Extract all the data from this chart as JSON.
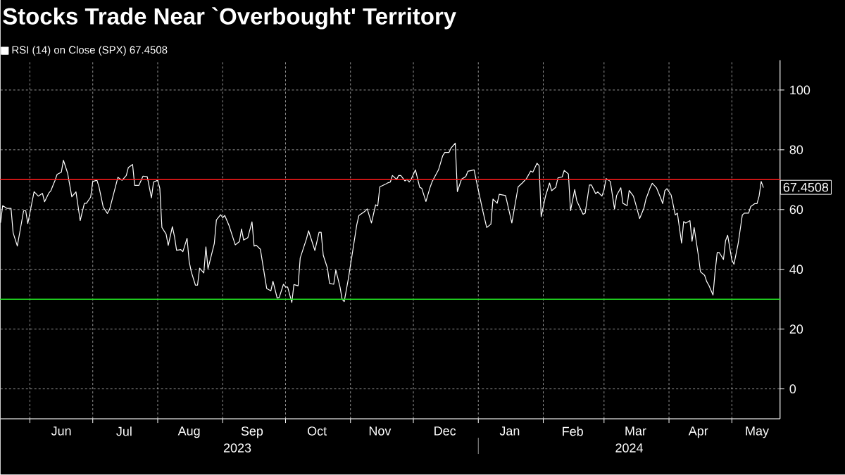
{
  "chart_data": {
    "type": "line",
    "title": "Stocks Trade Near `Overbought' Territory",
    "x": [
      "2023-05-18",
      "2023-05-19",
      "2023-05-21",
      "2023-05-23",
      "2023-05-24",
      "2023-05-26",
      "2023-05-29",
      "2023-05-30",
      "2023-05-31",
      "2023-06-03",
      "2023-06-05",
      "2023-06-07",
      "2023-06-08",
      "2023-06-10",
      "2023-06-11",
      "2023-06-13",
      "2023-06-14",
      "2023-06-16",
      "2023-06-17",
      "2023-06-19",
      "2023-06-21",
      "2023-06-23",
      "2023-06-25",
      "2023-06-27",
      "2023-06-28",
      "2023-06-30",
      "2023-07-01",
      "2023-07-03",
      "2023-07-04",
      "2023-07-06",
      "2023-07-08",
      "2023-07-09",
      "2023-07-13",
      "2023-07-15",
      "2023-07-17",
      "2023-07-18",
      "2023-07-20",
      "2023-07-21",
      "2023-07-23",
      "2023-07-25",
      "2023-07-27",
      "2023-07-29",
      "2023-07-30",
      "2023-08-01",
      "2023-08-02",
      "2023-08-03",
      "2023-08-05",
      "2023-08-06",
      "2023-08-08",
      "2023-08-09",
      "2023-08-10",
      "2023-08-12",
      "2023-08-13",
      "2023-08-15",
      "2023-08-16",
      "2023-08-17",
      "2023-08-19",
      "2023-08-20",
      "2023-08-21",
      "2023-08-23",
      "2023-08-24",
      "2023-08-25",
      "2023-08-28",
      "2023-08-29",
      "2023-08-31",
      "2023-09-01",
      "2023-09-02",
      "2023-09-04",
      "2023-09-06",
      "2023-09-07",
      "2023-09-09",
      "2023-09-10",
      "2023-09-11",
      "2023-09-13",
      "2023-09-15",
      "2023-09-16",
      "2023-09-17",
      "2023-09-19",
      "2023-09-22",
      "2023-09-24",
      "2023-09-25",
      "2023-09-27",
      "2023-09-28",
      "2023-09-30",
      "2023-10-01",
      "2023-10-02",
      "2023-10-04",
      "2023-10-05",
      "2023-10-07",
      "2023-10-08",
      "2023-10-11",
      "2023-10-12",
      "2023-10-15",
      "2023-10-17",
      "2023-10-18",
      "2023-10-19",
      "2023-10-21",
      "2023-10-22",
      "2023-10-24",
      "2023-10-25",
      "2023-10-27",
      "2023-10-28",
      "2023-10-29",
      "2023-10-31",
      "2023-11-02",
      "2023-11-04",
      "2023-11-05",
      "2023-11-08",
      "2023-11-09",
      "2023-11-11",
      "2023-11-13",
      "2023-11-14",
      "2023-11-15",
      "2023-11-18",
      "2023-11-19",
      "2023-11-20",
      "2023-11-21",
      "2023-11-23",
      "2023-11-24",
      "2023-11-25",
      "2023-11-27",
      "2023-11-28",
      "2023-11-29",
      "2023-11-30",
      "2023-12-02",
      "2023-12-04",
      "2023-12-05",
      "2023-12-07",
      "2023-12-09",
      "2023-12-10",
      "2023-12-13",
      "2023-12-15",
      "2023-12-16",
      "2023-12-18",
      "2023-12-19",
      "2023-12-21",
      "2023-12-22",
      "2023-12-24",
      "2023-12-26",
      "2023-12-27",
      "2023-12-30",
      "2023-12-31",
      "2024-01-03",
      "2024-01-05",
      "2024-01-07",
      "2024-01-08",
      "2024-01-10",
      "2024-01-11",
      "2024-01-14",
      "2024-01-17",
      "2024-01-20",
      "2024-01-22",
      "2024-01-24",
      "2024-01-26",
      "2024-01-27",
      "2024-01-29",
      "2024-01-30",
      "2024-01-31",
      "2024-02-02",
      "2024-02-04",
      "2024-02-05",
      "2024-02-07",
      "2024-02-08",
      "2024-02-10",
      "2024-02-11",
      "2024-02-13",
      "2024-02-14",
      "2024-02-16",
      "2024-02-17",
      "2024-02-20",
      "2024-02-21",
      "2024-02-23",
      "2024-02-24",
      "2024-02-26",
      "2024-02-27",
      "2024-02-29",
      "2024-03-01",
      "2024-03-02",
      "2024-03-04",
      "2024-03-06",
      "2024-03-07",
      "2024-03-09",
      "2024-03-10",
      "2024-03-12",
      "2024-03-13",
      "2024-03-15",
      "2024-03-16",
      "2024-03-18",
      "2024-03-20",
      "2024-03-21",
      "2024-03-23",
      "2024-03-24",
      "2024-03-26",
      "2024-03-28",
      "2024-03-29",
      "2024-03-30",
      "2024-03-31",
      "2024-04-02",
      "2024-04-04",
      "2024-04-05",
      "2024-04-07",
      "2024-04-08",
      "2024-04-09",
      "2024-04-11",
      "2024-04-12",
      "2024-04-13",
      "2024-04-15",
      "2024-04-16",
      "2024-04-18",
      "2024-04-19",
      "2024-04-20",
      "2024-04-22",
      "2024-04-23",
      "2024-04-24",
      "2024-04-25",
      "2024-04-27",
      "2024-04-28",
      "2024-04-29",
      "2024-05-01",
      "2024-05-02",
      "2024-05-04",
      "2024-05-06",
      "2024-05-07",
      "2024-05-09",
      "2024-05-10",
      "2024-05-12",
      "2024-05-13",
      "2024-05-14",
      "2024-05-15",
      "2024-05-16"
    ],
    "series": [
      {
        "name": "RSI (14)  on Close (SPX) 67.4508",
        "color": "#ffffff",
        "values": [
          55.7,
          61.3,
          60.4,
          60.4,
          52.2,
          47.8,
          59.6,
          59.6,
          55.3,
          66.0,
          64.5,
          65.4,
          62.6,
          65.5,
          66.3,
          69.8,
          71.8,
          72.5,
          76.5,
          72.2,
          64.3,
          65.9,
          56.3,
          62.1,
          62.1,
          64.2,
          69.4,
          69.8,
          67.5,
          60.8,
          58.7,
          60.0,
          70.8,
          69.8,
          71.4,
          74.1,
          75.1,
          68.1,
          68.1,
          71.2,
          71.0,
          63.9,
          69.2,
          69.8,
          67.1,
          54.0,
          51.8,
          48.0,
          54.3,
          51.0,
          46.4,
          46.6,
          45.9,
          50.4,
          42.7,
          39.2,
          34.7,
          34.7,
          40.4,
          38.8,
          47.5,
          40.2,
          48.6,
          56.5,
          58.3,
          57.3,
          58.0,
          54.7,
          50.4,
          48.2,
          49.3,
          53.5,
          49.8,
          50.6,
          55.9,
          47.8,
          48.1,
          46.7,
          33.6,
          32.8,
          36.0,
          30.4,
          30.6,
          35.0,
          34.1,
          34.1,
          28.9,
          34.9,
          34.5,
          43.8,
          50.2,
          52.9,
          46.3,
          52.4,
          52.4,
          44.7,
          40.4,
          35.3,
          35.0,
          39.8,
          34.1,
          30.0,
          29.2,
          36.9,
          45.9,
          54.9,
          58.0,
          59.5,
          60.2,
          55.5,
          61.6,
          61.2,
          67.6,
          68.6,
          69.0,
          69.2,
          71.4,
          70.1,
          71.4,
          71.4,
          69.6,
          70.1,
          69.2,
          70.2,
          73.3,
          67.5,
          67.1,
          62.7,
          67.5,
          69.4,
          73.3,
          78.0,
          79.1,
          79.1,
          80.6,
          82.2,
          66.0,
          70.2,
          71.0,
          72.8,
          73.3,
          69.8,
          60.0,
          54.0,
          55.1,
          63.5,
          62.1,
          65.1,
          64.7,
          55.5,
          67.6,
          68.9,
          70.4,
          72.9,
          72.5,
          75.5,
          74.7,
          57.6,
          64.3,
          68.9,
          66.3,
          67.5,
          70.6,
          70.9,
          73.1,
          71.9,
          59.6,
          66.7,
          62.9,
          58.4,
          58.8,
          68.2,
          68.2,
          65.3,
          65.9,
          64.5,
          66.7,
          70.4,
          69.4,
          60.2,
          64.7,
          67.3,
          62.1,
          61.3,
          66.4,
          64.5,
          62.1,
          57.0,
          60.4,
          63.5,
          67.3,
          68.8,
          67.3,
          63.9,
          62.0,
          66.3,
          67.0,
          64.9,
          58.2,
          58.8,
          48.8,
          56.0,
          55.5,
          56.3,
          49.4,
          54.0,
          44.7,
          39.2,
          38.0,
          35.9,
          34.7,
          31.4,
          39.2,
          45.6,
          45.6,
          43.3,
          49.6,
          51.4,
          43.1,
          41.7,
          48.6,
          58.2,
          58.8,
          58.8,
          61.0,
          62.0,
          62.0,
          64.5,
          69.4,
          67.4508
        ]
      }
    ],
    "xlim": [
      "2023-05-18",
      "2024-05-24"
    ],
    "xticks": [
      {
        "value": "2023-06-01",
        "label": null
      },
      {
        "value": "2023-07-01",
        "label": null
      },
      {
        "value": "2023-08-01",
        "label": null
      },
      {
        "value": "2023-09-01",
        "label": null
      },
      {
        "value": "2023-10-01",
        "label": null
      },
      {
        "value": "2023-11-01",
        "label": null
      },
      {
        "value": "2023-12-01",
        "label": null
      },
      {
        "value": "2024-01-01",
        "label": null
      },
      {
        "value": "2024-02-01",
        "label": null
      },
      {
        "value": "2024-03-01",
        "label": null
      },
      {
        "value": "2024-04-01",
        "label": null
      },
      {
        "value": "2024-05-01",
        "label": null
      },
      {
        "value": "2023-06-16",
        "label": "Jun"
      },
      {
        "value": "2023-07-16",
        "label": "Jul"
      },
      {
        "value": "2023-08-16",
        "label": "Aug"
      },
      {
        "value": "2023-09-15",
        "label": "Sep"
      },
      {
        "value": "2023-10-16",
        "label": "Oct"
      },
      {
        "value": "2023-11-15",
        "label": "Nov"
      },
      {
        "value": "2023-12-16",
        "label": "Dec"
      },
      {
        "value": "2024-01-16",
        "label": "Jan"
      },
      {
        "value": "2024-02-15",
        "label": "Feb"
      },
      {
        "value": "2024-03-16",
        "label": "Mar"
      },
      {
        "value": "2024-04-15",
        "label": "Apr"
      },
      {
        "value": "2024-05-13",
        "label": "May"
      }
    ],
    "x2lim": [
      "2023-05-18",
      "2024-05-24"
    ],
    "x2ticks": [
      {
        "value": "2023-09-08",
        "label": "2023"
      },
      {
        "value": "2024-01-01",
        "label": null
      },
      {
        "value": "2024-03-13",
        "label": "2024"
      }
    ],
    "ylim": [
      -10,
      110
    ],
    "yticks": [
      0,
      20,
      40,
      60,
      80,
      100
    ],
    "ref_lines": [
      {
        "axis": "y",
        "value": 70,
        "color": "#ff1a1a"
      },
      {
        "axis": "y",
        "value": 30,
        "color": "#22e022"
      }
    ],
    "annotations": [
      {
        "text": "67.4508",
        "x": "2024-05-16",
        "y": 67.4508
      }
    ],
    "grid": true,
    "legend": "top left"
  }
}
